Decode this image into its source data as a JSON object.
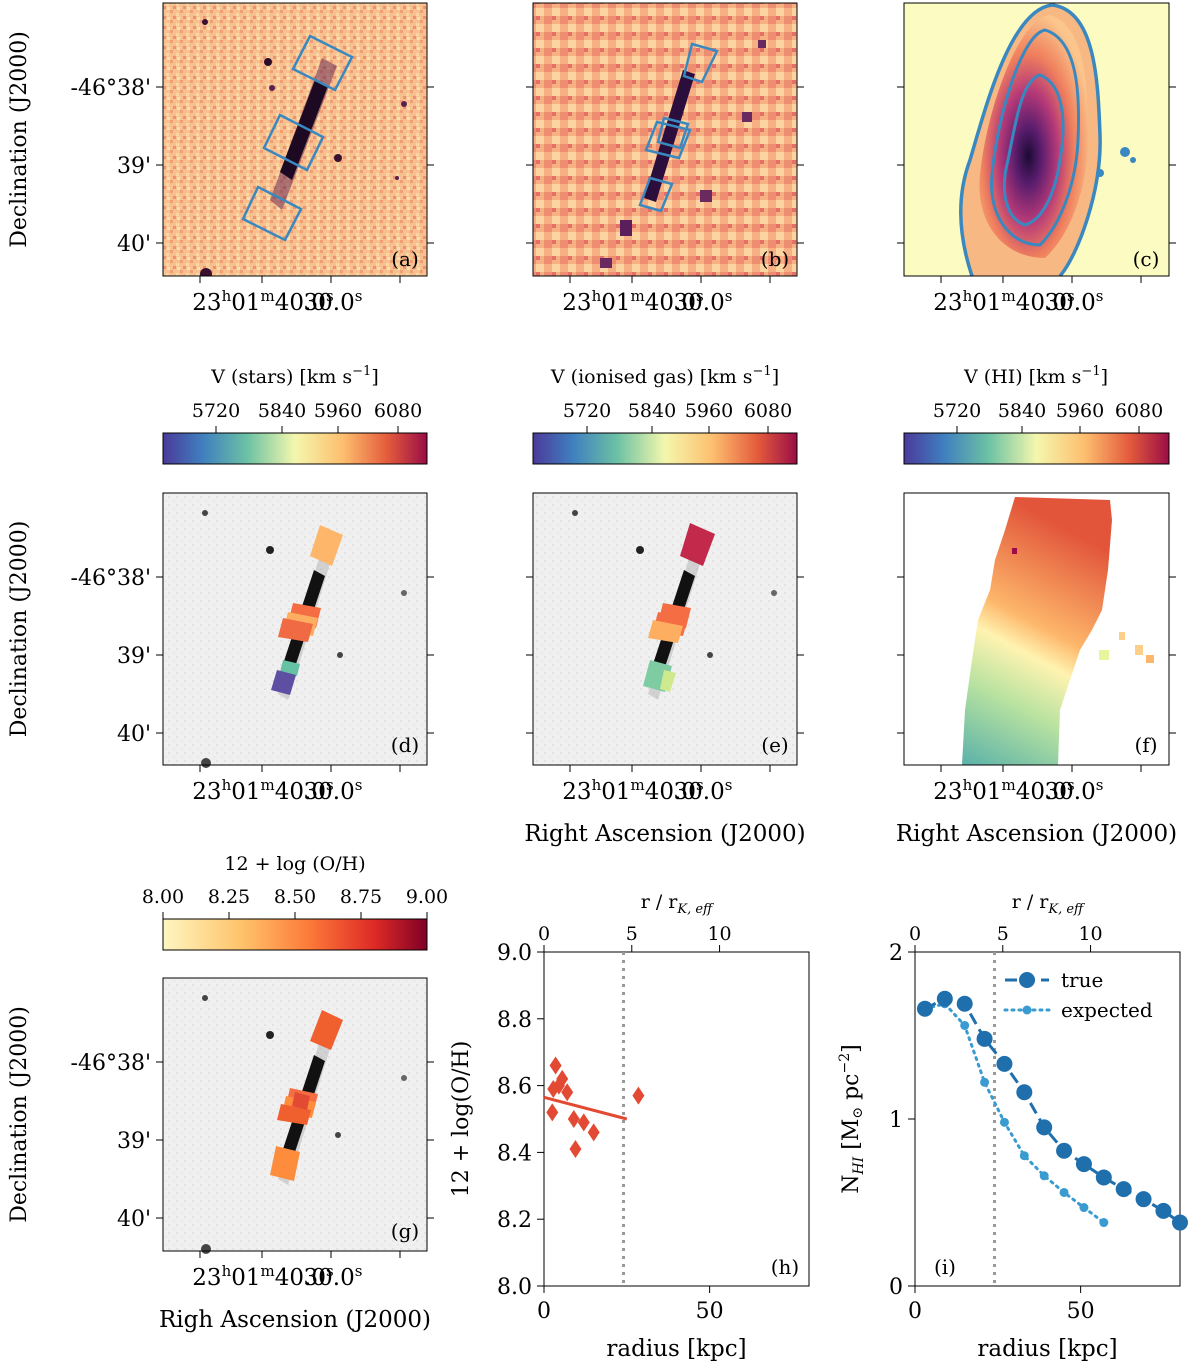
{
  "axis_text": {
    "declination": "Declination (J2000)",
    "right_ascension": "Right Ascension (J2000)",
    "righ_ascension": "Righ Ascension (J2000)",
    "dec_38": "-46°38'",
    "dec_39": "39'",
    "dec_40": "40'",
    "ra_left_main": "23",
    "ra_left_sup_h": "h",
    "ra_left_mid": "01",
    "ra_left_sup_m": "m",
    "ra_left_end": "40.0",
    "ra_left_sup_s": "s",
    "ra_right_main": "30.0",
    "ra_right_sup_s": "s"
  },
  "panels": {
    "a": "(a)",
    "b": "(b)",
    "c": "(c)",
    "d": "(d)",
    "e": "(e)",
    "f": "(f)",
    "g": "(g)",
    "h": "(h)",
    "i": "(i)"
  },
  "colorbars": {
    "stars": {
      "label": "V (stars) [km s",
      "sup": "−1",
      "end": "]",
      "ticks": [
        "5720",
        "5840",
        "5960",
        "6080"
      ]
    },
    "gas": {
      "label": "V (ionised gas) [km s",
      "sup": "−1",
      "end": "]",
      "ticks": [
        "5720",
        "5840",
        "5960",
        "6080"
      ]
    },
    "hi": {
      "label": "V (HI) [km s",
      "sup": "−1",
      "end": "]",
      "ticks": [
        "5720",
        "5840",
        "5960",
        "6080"
      ]
    },
    "oh": {
      "label": "12 + log (O/H)",
      "ticks": [
        "8.00",
        "8.25",
        "8.50",
        "8.75",
        "9.00"
      ]
    }
  },
  "colors": {
    "box_blue": "#3a88c0",
    "oh_red": "#e34a33",
    "nhi_true": "#1f6fad",
    "nhi_expected": "#3a9bd0",
    "vline_gray": "#999999"
  },
  "chart_data": [
    {
      "id": "h",
      "type": "scatter",
      "title": "",
      "xlabel": "radius [kpc]",
      "ylabel": "12 + log(O/H)",
      "top_xlabel": "r / r",
      "top_xlabel_sub": "K, eff",
      "xlim": [
        0,
        80
      ],
      "ylim": [
        8.0,
        9.0
      ],
      "x_ticks": [
        "0",
        "50"
      ],
      "y_ticks": [
        "8.0",
        "8.2",
        "8.4",
        "8.6",
        "8.8",
        "9.0"
      ],
      "top_ticks": [
        "0",
        "5",
        "10"
      ],
      "top_scale_kpc_per_unit": 5.3,
      "points": [
        {
          "x": 2.5,
          "y": 8.52
        },
        {
          "x": 2.8,
          "y": 8.59
        },
        {
          "x": 3.5,
          "y": 8.66
        },
        {
          "x": 4.5,
          "y": 8.6
        },
        {
          "x": 5.5,
          "y": 8.62
        },
        {
          "x": 7.0,
          "y": 8.58
        },
        {
          "x": 9.0,
          "y": 8.5
        },
        {
          "x": 9.5,
          "y": 8.41
        },
        {
          "x": 12.0,
          "y": 8.49
        },
        {
          "x": 15.0,
          "y": 8.46
        },
        {
          "x": 28.5,
          "y": 8.57
        }
      ],
      "fit_line": {
        "x": [
          0,
          25
        ],
        "y": [
          8.565,
          8.5
        ]
      },
      "vline_x": 24
    },
    {
      "id": "i",
      "type": "line",
      "title": "",
      "xlabel": "radius [kpc]",
      "ylabel": "N",
      "ylabel_sub": "HI",
      "ylabel_unit": " [M",
      "ylabel_sun": "⊙",
      "ylabel_tail": " pc",
      "ylabel_sup": "−2",
      "ylabel_close": "]",
      "xlim": [
        0,
        80
      ],
      "ylim": [
        0,
        2
      ],
      "x_ticks": [
        "0",
        "50"
      ],
      "y_ticks": [
        "0",
        "1",
        "2"
      ],
      "top_xlabel": "r / r",
      "top_xlabel_sub": "K, eff",
      "top_ticks": [
        "0",
        "5",
        "10"
      ],
      "top_scale_kpc_per_unit": 5.3,
      "vline_x": 24,
      "legend_position": "top-right",
      "series": [
        {
          "name": "true",
          "x": [
            3,
            9,
            15,
            21,
            27,
            33,
            39,
            45,
            51,
            57,
            63,
            69,
            75,
            80
          ],
          "y": [
            1.66,
            1.72,
            1.69,
            1.48,
            1.33,
            1.16,
            0.95,
            0.81,
            0.73,
            0.65,
            0.58,
            0.52,
            0.45,
            0.38
          ]
        },
        {
          "name": "expected",
          "x": [
            3,
            9,
            15,
            21,
            27,
            33,
            39,
            45,
            51,
            57
          ],
          "y": [
            1.66,
            1.69,
            1.56,
            1.22,
            0.98,
            0.78,
            0.66,
            0.56,
            0.47,
            0.38
          ]
        }
      ]
    }
  ]
}
